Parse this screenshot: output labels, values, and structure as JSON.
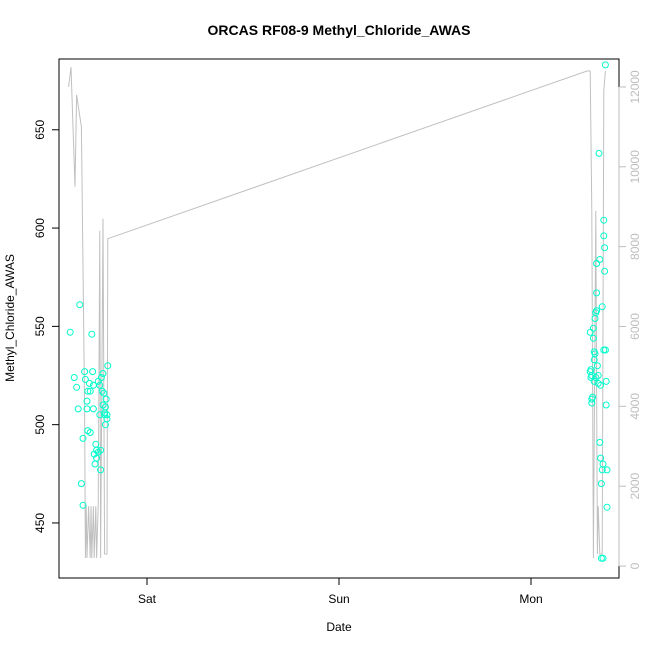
{
  "chart_data": {
    "type": "scatter",
    "title": "ORCAS RF08-9 Methyl_Chloride_AWAS",
    "xlabel": "Date",
    "ylabel": "Methyl_Chloride_AWAS",
    "x_ticks": [
      "Sat",
      "Sun",
      "Mon"
    ],
    "x_tick_hours": [
      24,
      48,
      72
    ],
    "xlim_hours": [
      13,
      83
    ],
    "ylim": [
      422,
      686
    ],
    "y_ticks": [
      450,
      500,
      550,
      600,
      650
    ],
    "y2lim": [
      -300,
      12700
    ],
    "y2_ticks": [
      0,
      2000,
      4000,
      6000,
      8000,
      10000,
      12000
    ],
    "colors": {
      "points": "#00FFCC",
      "line": "#c0c0c0",
      "axis": "#000000",
      "right_axis": "#bdbdbd"
    },
    "series": [
      {
        "type": "scatter",
        "axis": "left",
        "points": [
          [
            14.4,
            547
          ],
          [
            14.9,
            524
          ],
          [
            15.2,
            519
          ],
          [
            15.6,
            561
          ],
          [
            15.4,
            508
          ],
          [
            15.8,
            470
          ],
          [
            16.0,
            459
          ],
          [
            16.0,
            493
          ],
          [
            16.2,
            527
          ],
          [
            16.3,
            523
          ],
          [
            16.5,
            512
          ],
          [
            16.5,
            508
          ],
          [
            16.6,
            497
          ],
          [
            16.6,
            517
          ],
          [
            16.8,
            521
          ],
          [
            16.9,
            517
          ],
          [
            16.9,
            496
          ],
          [
            17.1,
            546
          ],
          [
            17.2,
            527
          ],
          [
            17.3,
            520
          ],
          [
            17.3,
            508
          ],
          [
            17.4,
            485
          ],
          [
            17.5,
            480
          ],
          [
            17.6,
            490
          ],
          [
            17.7,
            487
          ],
          [
            17.7,
            483
          ],
          [
            17.9,
            522
          ],
          [
            17.9,
            486
          ],
          [
            18.1,
            520
          ],
          [
            18.1,
            505
          ],
          [
            18.2,
            477
          ],
          [
            18.2,
            487
          ],
          [
            18.3,
            524
          ],
          [
            18.4,
            517
          ],
          [
            18.5,
            510
          ],
          [
            18.5,
            526
          ],
          [
            18.6,
            516
          ],
          [
            18.7,
            505
          ],
          [
            18.7,
            506
          ],
          [
            18.8,
            509
          ],
          [
            18.8,
            500
          ],
          [
            18.9,
            513
          ],
          [
            19.0,
            503
          ],
          [
            19.0,
            505
          ],
          [
            19.1,
            530
          ]
        ]
      },
      {
        "type": "scatter",
        "axis": "left",
        "points": [
          [
            79.4,
            547
          ],
          [
            79.4,
            527
          ],
          [
            79.5,
            524
          ],
          [
            79.5,
            528
          ],
          [
            79.6,
            525
          ],
          [
            79.6,
            513
          ],
          [
            79.6,
            511
          ],
          [
            79.7,
            514
          ],
          [
            79.8,
            544
          ],
          [
            79.8,
            549
          ],
          [
            79.9,
            537
          ],
          [
            79.9,
            533
          ],
          [
            79.9,
            522
          ],
          [
            80.0,
            554
          ],
          [
            80.0,
            536
          ],
          [
            80.1,
            557
          ],
          [
            80.1,
            524
          ],
          [
            80.2,
            582
          ],
          [
            80.2,
            567
          ],
          [
            80.2,
            558
          ],
          [
            80.3,
            530
          ],
          [
            80.4,
            525
          ],
          [
            80.4,
            521
          ],
          [
            80.5,
            638
          ],
          [
            80.6,
            584
          ],
          [
            80.6,
            491
          ],
          [
            80.7,
            520
          ],
          [
            80.7,
            483
          ],
          [
            80.8,
            470
          ],
          [
            80.8,
            432
          ],
          [
            80.9,
            560
          ],
          [
            80.9,
            477
          ],
          [
            81.0,
            432
          ],
          [
            81.0,
            480
          ],
          [
            81.1,
            604
          ],
          [
            81.1,
            596
          ],
          [
            81.1,
            538
          ],
          [
            81.2,
            590
          ],
          [
            81.2,
            578
          ],
          [
            81.3,
            683
          ],
          [
            81.3,
            538
          ],
          [
            81.4,
            522
          ],
          [
            81.4,
            510
          ],
          [
            81.5,
            477
          ],
          [
            81.5,
            458
          ]
        ]
      },
      {
        "type": "line",
        "axis": "right",
        "points": [
          [
            14.2,
            12000
          ],
          [
            14.5,
            12500
          ],
          [
            15.0,
            9500
          ],
          [
            15.2,
            11800
          ],
          [
            15.8,
            11000
          ],
          [
            16.2,
            4000
          ],
          [
            16.3,
            200
          ],
          [
            16.4,
            1500
          ],
          [
            16.5,
            200
          ],
          [
            16.7,
            1500
          ],
          [
            16.9,
            200
          ],
          [
            17.0,
            1500
          ],
          [
            17.1,
            200
          ],
          [
            17.3,
            1500
          ],
          [
            17.4,
            200
          ],
          [
            17.6,
            1500
          ],
          [
            17.7,
            200
          ],
          [
            17.9,
            1500
          ],
          [
            18.1,
            8400
          ],
          [
            18.2,
            200
          ],
          [
            18.5,
            8700
          ],
          [
            18.7,
            300
          ],
          [
            19.0,
            300
          ],
          [
            19.1,
            8200
          ],
          [
            79.0,
            12400
          ],
          [
            79.4,
            12400
          ],
          [
            79.6,
            8900
          ],
          [
            79.8,
            200
          ],
          [
            80.1,
            8900
          ],
          [
            80.3,
            300
          ],
          [
            80.4,
            1500
          ],
          [
            80.6,
            300
          ],
          [
            80.9,
            300
          ],
          [
            81.1,
            11900
          ],
          [
            81.3,
            12400
          ]
        ]
      }
    ]
  }
}
